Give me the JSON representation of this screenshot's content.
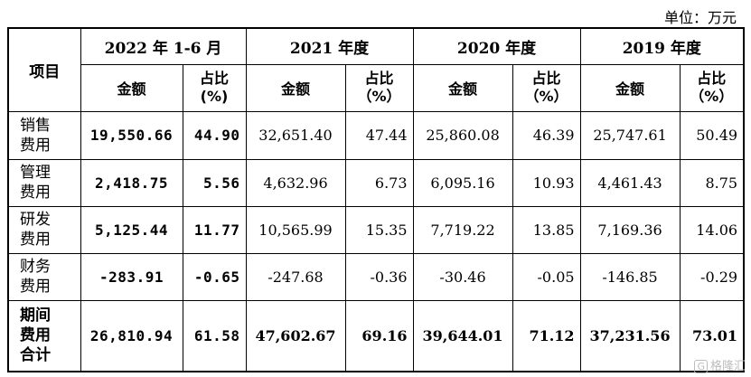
{
  "unit_label": "单位：万元",
  "header": {
    "item": "项目",
    "periods": [
      "2022 年 1-6 月",
      "2021 年度",
      "2020 年度",
      "2019 年度"
    ],
    "amount": "金额",
    "ratio_line1": "占比",
    "ratio_line2": "（%）",
    "ratio_line2_first": "(%)"
  },
  "rows": [
    {
      "item_l1": "销售",
      "item_l2": "费用",
      "item_l3": "",
      "v": [
        "19,550.66",
        "44.90",
        "32,651.40",
        "47.44",
        "25,860.08",
        "46.39",
        "25,747.61",
        "50.49"
      ]
    },
    {
      "item_l1": "管理",
      "item_l2": "费用",
      "item_l3": "",
      "v": [
        "2,418.75",
        "5.56",
        "4,632.96",
        "6.73",
        "6,095.16",
        "10.93",
        "4,461.43",
        "8.75"
      ]
    },
    {
      "item_l1": "研发",
      "item_l2": "费用",
      "item_l3": "",
      "v": [
        "5,125.44",
        "11.77",
        "10,565.99",
        "15.35",
        "7,719.22",
        "13.85",
        "7,169.36",
        "14.06"
      ]
    },
    {
      "item_l1": "财务",
      "item_l2": "费用",
      "item_l3": "",
      "v": [
        "-283.91",
        "-0.65",
        "-247.68",
        "-0.36",
        "-30.46",
        "-0.05",
        "-146.85",
        "-0.29"
      ]
    },
    {
      "item_l1": "期间",
      "item_l2": "费用",
      "item_l3": "合计",
      "v": [
        "26,810.94",
        "61.58",
        "47,602.67",
        "69.16",
        "39,644.01",
        "71.12",
        "37,231.56",
        "73.01"
      ]
    }
  ],
  "watermark": {
    "logo": "G",
    "text": "格隆汇"
  }
}
